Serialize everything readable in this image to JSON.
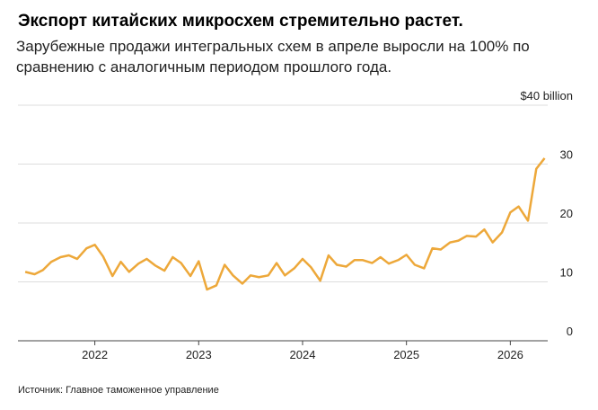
{
  "chart_data": {
    "type": "line",
    "title": "Экспорт китайских микросхем стремительно растет.",
    "subtitle": "Зарубежные продажи интегральных схем в апреле выросли на 100% по сравнению с аналогичным периодом прошлого года.",
    "source": "Источник: Главное таможенное управление",
    "x": [
      2021.33,
      2021.42,
      2021.5,
      2021.58,
      2021.67,
      2021.75,
      2021.83,
      2021.92,
      2022,
      2022.08,
      2022.17,
      2022.25,
      2022.33,
      2022.42,
      2022.5,
      2022.58,
      2022.67,
      2022.75,
      2022.83,
      2022.92,
      2023,
      2023.08,
      2023.17,
      2023.25,
      2023.33,
      2023.42,
      2023.5,
      2023.58,
      2023.67,
      2023.75,
      2023.83,
      2023.92,
      2024,
      2024.08,
      2024.17,
      2024.25,
      2024.33,
      2024.42,
      2024.5,
      2024.58,
      2024.67,
      2024.75,
      2024.83,
      2024.92,
      2025,
      2025.08,
      2025.17,
      2025.25,
      2025.33,
      2025.42,
      2025.5,
      2025.58,
      2025.67,
      2025.75,
      2025.83,
      2025.92,
      2026,
      2026.08,
      2026.17,
      2026.25,
      2026.33
    ],
    "series": [
      {
        "name": "Экспорт",
        "color": "#eda83a",
        "values": [
          11.7,
          11.3,
          12.0,
          13.4,
          14.2,
          14.5,
          13.9,
          15.7,
          16.3,
          14.3,
          11.0,
          13.4,
          11.7,
          13.1,
          13.9,
          12.8,
          11.9,
          14.2,
          13.2,
          11.0,
          13.5,
          8.7,
          9.4,
          12.9,
          11.1,
          9.7,
          11.1,
          10.8,
          11.1,
          13.2,
          11.1,
          12.3,
          13.9,
          12.5,
          10.2,
          14.5,
          12.9,
          12.6,
          13.7,
          13.7,
          13.2,
          14.2,
          13.1,
          13.7,
          14.6,
          12.9,
          12.3,
          15.7,
          15.5,
          16.7,
          17.0,
          17.8,
          17.7,
          18.9,
          16.7,
          18.4,
          21.8,
          22.8,
          20.4,
          29.2,
          31.0
        ]
      }
    ],
    "xlim": [
      2021.26,
      2026.36
    ],
    "xticks": [
      2022,
      2023,
      2024,
      2025,
      2026
    ],
    "ylim": [
      0,
      40
    ],
    "yticks": [
      0,
      10,
      20,
      30,
      {
        "value": 40,
        "label": "$40 billion"
      }
    ],
    "grid": true
  }
}
